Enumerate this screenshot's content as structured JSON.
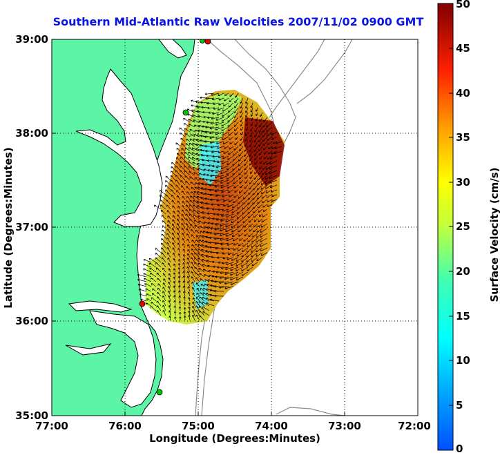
{
  "map": {
    "title": "Southern Mid-Atlantic Raw Velocities 2007/11/02 0900 GMT",
    "xlabel": "Longitude (Degrees:Minutes)",
    "ylabel": "Latitude (Degrees:Minutes)",
    "x_ticks": [
      "77:00",
      "76:00",
      "75:00",
      "74:00",
      "73:00",
      "72:00"
    ],
    "y_ticks": [
      "39:00",
      "38:00",
      "37:00",
      "36:00",
      "35:00"
    ],
    "grid": "dotted",
    "land_color": "#5cf5a5",
    "coast_color": "#000000",
    "bathymetry_color": "#8c8c8c",
    "arrow_color": "#000000",
    "station_colors": [
      "#e60000",
      "#00c800"
    ]
  },
  "colorbar": {
    "label": "Surface Velocity (cm/s)",
    "ticks": [
      "50",
      "45",
      "40",
      "35",
      "30",
      "25",
      "20",
      "15",
      "10",
      "5",
      "0"
    ],
    "range": [
      0,
      50
    ],
    "colormap": "jet"
  }
}
